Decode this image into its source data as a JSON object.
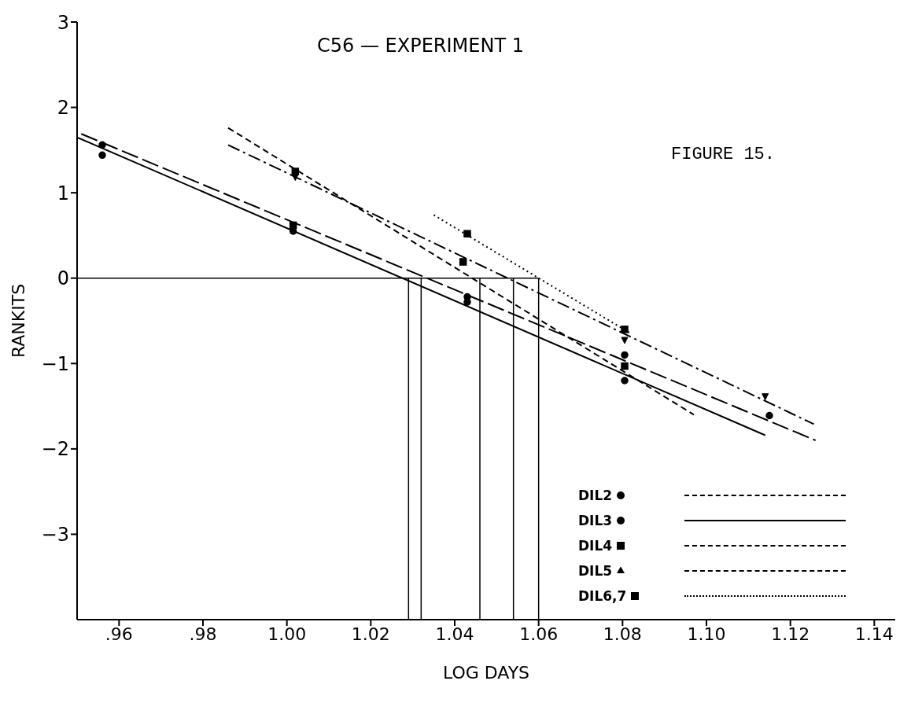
{
  "chart_data": {
    "type": "scatter",
    "title": "C56 — EXPERIMENT 1",
    "xlabel": "LOG DAYS",
    "ylabel": "RANKITS",
    "annotations": [
      "FIGURE 15."
    ],
    "xlim": [
      0.95,
      1.145
    ],
    "ylim": [
      -4,
      3
    ],
    "xticks": [
      {
        "value": 0.96,
        "label": ".96"
      },
      {
        "value": 0.98,
        "label": ".98"
      },
      {
        "value": 1.0,
        "label": "1.00"
      },
      {
        "value": 1.02,
        "label": "1.02"
      },
      {
        "value": 1.04,
        "label": "1.04"
      },
      {
        "value": 1.06,
        "label": "1.06"
      },
      {
        "value": 1.08,
        "label": "1.08"
      },
      {
        "value": 1.1,
        "label": "1.10"
      },
      {
        "value": 1.12,
        "label": "1.12"
      },
      {
        "value": 1.14,
        "label": "1.14"
      }
    ],
    "yticks": [
      -3,
      -2,
      -1,
      0,
      1,
      2,
      3
    ],
    "grid": false,
    "legend": "bottom right",
    "series": [
      {
        "name": "DIL2",
        "type": "scatter",
        "marker": "circle",
        "color": "#000000",
        "x": [
          0.956,
          1.0015,
          1.043,
          1.0805
        ],
        "values": [
          1.56,
          0.55,
          -0.28,
          -0.9
        ]
      },
      {
        "type": "line",
        "line_style": "dashed",
        "color": "#000000",
        "x": [
          0.951,
          1.126
        ],
        "values": [
          1.69,
          -1.9
        ]
      },
      {
        "name": "DIL3",
        "type": "scatter",
        "marker": "circle",
        "color": "#000000",
        "x": [
          0.956,
          1.043,
          1.0805,
          1.115
        ],
        "values": [
          1.44,
          -0.22,
          -1.2,
          -1.61
        ]
      },
      {
        "type": "line",
        "line_style": "solid",
        "color": "#000000",
        "x": [
          0.95,
          1.114
        ],
        "values": [
          1.65,
          -1.84
        ]
      },
      {
        "name": "DIL4",
        "type": "scatter",
        "marker": "square",
        "color": "#000000",
        "x": [
          1.0015,
          1.002,
          1.042,
          1.0805
        ],
        "values": [
          0.62,
          1.25,
          0.19,
          -1.03
        ]
      },
      {
        "type": "line",
        "line_style": "dashed",
        "color": "#000000",
        "x": [
          0.986,
          1.097
        ],
        "values": [
          1.76,
          -1.6
        ]
      },
      {
        "name": "DIL5",
        "type": "scatter",
        "marker": "triangle",
        "color": "#000000",
        "x": [
          1.002,
          1.042,
          1.0805,
          1.114
        ],
        "values": [
          1.18,
          0.19,
          -0.73,
          -1.39
        ]
      },
      {
        "type": "line",
        "line_style": "dashed",
        "color": "#000000",
        "x": [
          0.986,
          1.1256
        ],
        "values": [
          1.56,
          -1.71
        ]
      },
      {
        "name": "DIL6,7",
        "type": "scatter",
        "marker": "square",
        "color": "#000000",
        "x": [
          1.043,
          1.0805
        ],
        "values": [
          0.52,
          -0.6
        ]
      },
      {
        "type": "line",
        "line_style": "dotted",
        "color": "#000000",
        "x": [
          1.035,
          1.082
        ],
        "values": [
          0.74,
          -0.65
        ]
      }
    ],
    "ref_lines": [
      {
        "axis": "y",
        "value": 0
      },
      {
        "axis": "x",
        "value": 1.029
      },
      {
        "axis": "x",
        "value": 1.032
      },
      {
        "axis": "x",
        "value": 1.046
      },
      {
        "axis": "x",
        "value": 1.054
      },
      {
        "axis": "x",
        "value": 1.06
      }
    ]
  }
}
